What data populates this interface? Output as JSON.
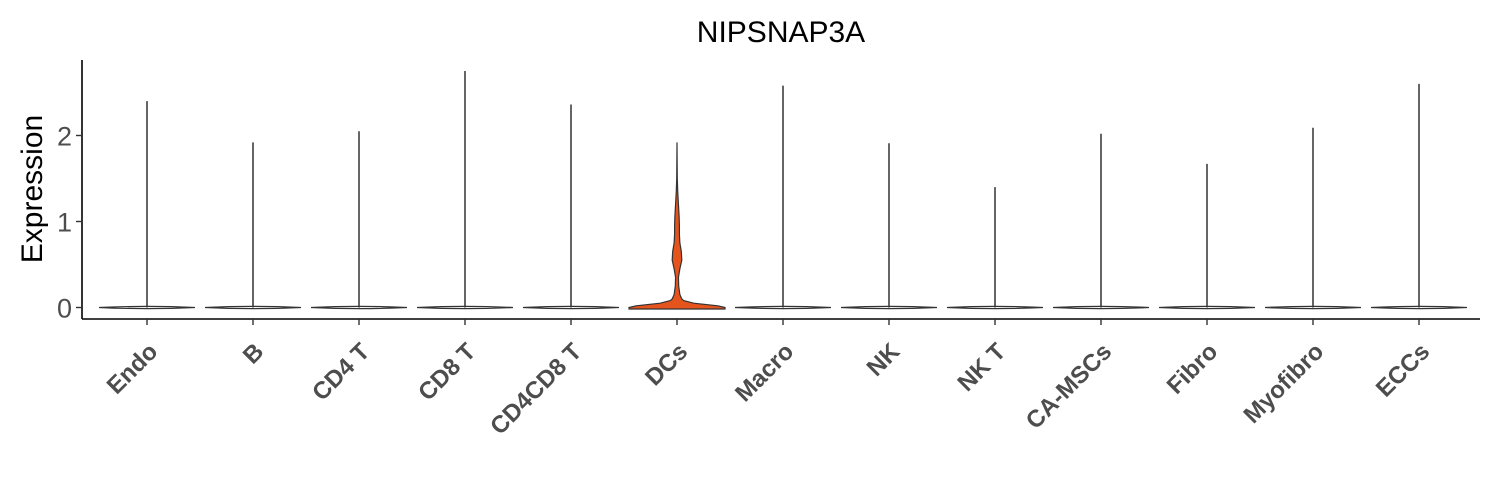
{
  "chart_data": {
    "type": "violin",
    "title": "NIPSNAP3A",
    "xlabel": "",
    "ylabel": "Expression",
    "ylim": [
      -0.15,
      2.9
    ],
    "yticks": [
      0,
      1,
      2
    ],
    "grid": false,
    "legend": "none",
    "categories": [
      "Endo",
      "B",
      "CD4 T",
      "CD8 T",
      "CD4CD8 T",
      "DCs",
      "Macro",
      "NK",
      "NK T",
      "CA-MSCs",
      "Fibro",
      "Myofibro",
      "ECCs"
    ],
    "max_values": [
      2.4,
      1.92,
      2.05,
      2.75,
      2.36,
      1.92,
      2.58,
      1.91,
      1.4,
      2.02,
      1.67,
      2.09,
      2.6
    ],
    "fill_colors": [
      "#ffffff",
      "#ffffff",
      "#ffffff",
      "#ffffff",
      "#ffffff",
      "#e6541e",
      "#ffffff",
      "#ffffff",
      "#ffffff",
      "#ffffff",
      "#ffffff",
      "#ffffff",
      "#ffffff"
    ],
    "highlight_color": "#e6541e",
    "dcs_density": [
      [
        0.0,
        1.0
      ],
      [
        0.02,
        0.85
      ],
      [
        0.05,
        0.35
      ],
      [
        0.08,
        0.14
      ],
      [
        0.1,
        0.1
      ],
      [
        0.15,
        0.06
      ],
      [
        0.25,
        0.035
      ],
      [
        0.35,
        0.03
      ],
      [
        0.45,
        0.06
      ],
      [
        0.55,
        0.1
      ],
      [
        0.65,
        0.09
      ],
      [
        0.75,
        0.06
      ],
      [
        0.85,
        0.05
      ],
      [
        0.95,
        0.05
      ],
      [
        1.05,
        0.045
      ],
      [
        1.15,
        0.035
      ],
      [
        1.25,
        0.025
      ],
      [
        1.35,
        0.015
      ],
      [
        1.5,
        0.006
      ],
      [
        1.7,
        0.003
      ],
      [
        1.92,
        0.0
      ]
    ]
  }
}
